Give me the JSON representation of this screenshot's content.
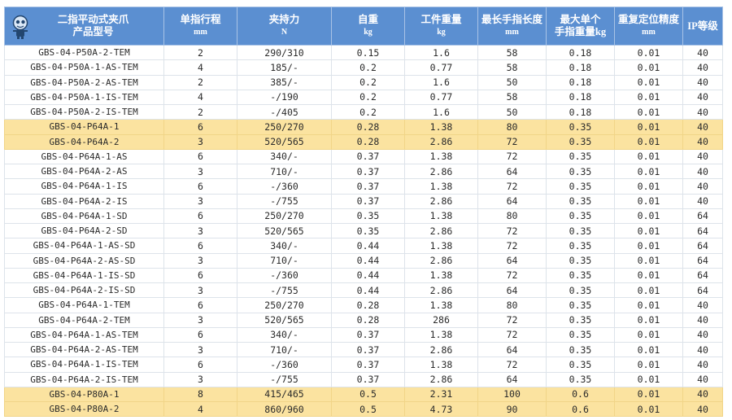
{
  "header": {
    "model": {
      "line1": "二指平动式夹爪",
      "line2": "产品型号"
    },
    "stroke": {
      "title": "单指行程",
      "unit": "mm"
    },
    "force": {
      "title": "夹持力",
      "unit": "N"
    },
    "weight": {
      "title": "自重",
      "unit": "kg"
    },
    "workpiece": {
      "title": "工件重量",
      "unit": "kg"
    },
    "finger_len": {
      "title": "最长手指长度",
      "unit": "mm"
    },
    "finger_wt": {
      "title": "最大单个",
      "unit": "手指重量kg"
    },
    "repeat": {
      "title": "重复定位精度",
      "unit": "mm"
    },
    "ip": {
      "title": "IP等级",
      "unit": ""
    }
  },
  "colors": {
    "header_bg": "#5b8fd1",
    "highlight_bg": "#fbe3a0"
  },
  "rows": [
    {
      "model": "GBS-04-P50A-2-TEM",
      "stroke": "2",
      "force": "290/310",
      "weight": "0.15",
      "workpiece": "1.6",
      "finger_len": "58",
      "finger_wt": "0.18",
      "repeat": "0.01",
      "ip": "40",
      "hl": false
    },
    {
      "model": "GBS-04-P50A-1-AS-TEM",
      "stroke": "4",
      "force": "185/-",
      "weight": "0.2",
      "workpiece": "0.77",
      "finger_len": "58",
      "finger_wt": "0.18",
      "repeat": "0.01",
      "ip": "40",
      "hl": false
    },
    {
      "model": "GBS-04-P50A-2-AS-TEM",
      "stroke": "2",
      "force": "385/-",
      "weight": "0.2",
      "workpiece": "1.6",
      "finger_len": "50",
      "finger_wt": "0.18",
      "repeat": "0.01",
      "ip": "40",
      "hl": false
    },
    {
      "model": "GBS-04-P50A-1-IS-TEM",
      "stroke": "4",
      "force": "-/190",
      "weight": "0.2",
      "workpiece": "0.77",
      "finger_len": "58",
      "finger_wt": "0.18",
      "repeat": "0.01",
      "ip": "40",
      "hl": false
    },
    {
      "model": "GBS-04-P50A-2-IS-TEM",
      "stroke": "2",
      "force": "-/405",
      "weight": "0.2",
      "workpiece": "1.6",
      "finger_len": "50",
      "finger_wt": "0.18",
      "repeat": "0.01",
      "ip": "40",
      "hl": false
    },
    {
      "model": "GBS-04-P64A-1",
      "stroke": "6",
      "force": "250/270",
      "weight": "0.28",
      "workpiece": "1.38",
      "finger_len": "80",
      "finger_wt": "0.35",
      "repeat": "0.01",
      "ip": "40",
      "hl": true
    },
    {
      "model": "GBS-04-P64A-2",
      "stroke": "3",
      "force": "520/565",
      "weight": "0.28",
      "workpiece": "2.86",
      "finger_len": "72",
      "finger_wt": "0.35",
      "repeat": "0.01",
      "ip": "40",
      "hl": true
    },
    {
      "model": "GBS-04-P64A-1-AS",
      "stroke": "6",
      "force": "340/-",
      "weight": "0.37",
      "workpiece": "1.38",
      "finger_len": "72",
      "finger_wt": "0.35",
      "repeat": "0.01",
      "ip": "40",
      "hl": false
    },
    {
      "model": "GBS-04-P64A-2-AS",
      "stroke": "3",
      "force": "710/-",
      "weight": "0.37",
      "workpiece": "2.86",
      "finger_len": "64",
      "finger_wt": "0.35",
      "repeat": "0.01",
      "ip": "40",
      "hl": false
    },
    {
      "model": "GBS-04-P64A-1-IS",
      "stroke": "6",
      "force": "-/360",
      "weight": "0.37",
      "workpiece": "1.38",
      "finger_len": "72",
      "finger_wt": "0.35",
      "repeat": "0.01",
      "ip": "40",
      "hl": false
    },
    {
      "model": "GBS-04-P64A-2-IS",
      "stroke": "3",
      "force": "-/755",
      "weight": "0.37",
      "workpiece": "2.86",
      "finger_len": "64",
      "finger_wt": "0.35",
      "repeat": "0.01",
      "ip": "40",
      "hl": false
    },
    {
      "model": "GBS-04-P64A-1-SD",
      "stroke": "6",
      "force": "250/270",
      "weight": "0.35",
      "workpiece": "1.38",
      "finger_len": "80",
      "finger_wt": "0.35",
      "repeat": "0.01",
      "ip": "64",
      "hl": false
    },
    {
      "model": "GBS-04-P64A-2-SD",
      "stroke": "3",
      "force": "520/565",
      "weight": "0.35",
      "workpiece": "2.86",
      "finger_len": "72",
      "finger_wt": "0.35",
      "repeat": "0.01",
      "ip": "64",
      "hl": false
    },
    {
      "model": "GBS-04-P64A-1-AS-SD",
      "stroke": "6",
      "force": "340/-",
      "weight": "0.44",
      "workpiece": "1.38",
      "finger_len": "72",
      "finger_wt": "0.35",
      "repeat": "0.01",
      "ip": "64",
      "hl": false
    },
    {
      "model": "GBS-04-P64A-2-AS-SD",
      "stroke": "3",
      "force": "710/-",
      "weight": "0.44",
      "workpiece": "2.86",
      "finger_len": "64",
      "finger_wt": "0.35",
      "repeat": "0.01",
      "ip": "64",
      "hl": false
    },
    {
      "model": "GBS-04-P64A-1-IS-SD",
      "stroke": "6",
      "force": "-/360",
      "weight": "0.44",
      "workpiece": "1.38",
      "finger_len": "72",
      "finger_wt": "0.35",
      "repeat": "0.01",
      "ip": "64",
      "hl": false
    },
    {
      "model": "GBS-04-P64A-2-IS-SD",
      "stroke": "3",
      "force": "-/755",
      "weight": "0.44",
      "workpiece": "2.86",
      "finger_len": "64",
      "finger_wt": "0.35",
      "repeat": "0.01",
      "ip": "64",
      "hl": false
    },
    {
      "model": "GBS-04-P64A-1-TEM",
      "stroke": "6",
      "force": "250/270",
      "weight": "0.28",
      "workpiece": "1.38",
      "finger_len": "80",
      "finger_wt": "0.35",
      "repeat": "0.01",
      "ip": "40",
      "hl": false
    },
    {
      "model": "GBS-04-P64A-2-TEM",
      "stroke": "3",
      "force": "520/565",
      "weight": "0.28",
      "workpiece": "286",
      "finger_len": "72",
      "finger_wt": "0.35",
      "repeat": "0.01",
      "ip": "40",
      "hl": false
    },
    {
      "model": "GBS-04-P64A-1-AS-TEM",
      "stroke": "6",
      "force": "340/-",
      "weight": "0.37",
      "workpiece": "1.38",
      "finger_len": "72",
      "finger_wt": "0.35",
      "repeat": "0.01",
      "ip": "40",
      "hl": false
    },
    {
      "model": "GBS-04-P64A-2-AS-TEM",
      "stroke": "3",
      "force": "710/-",
      "weight": "0.37",
      "workpiece": "2.86",
      "finger_len": "64",
      "finger_wt": "0.35",
      "repeat": "0.01",
      "ip": "40",
      "hl": false
    },
    {
      "model": "GBS-04-P64A-1-IS-TEM",
      "stroke": "6",
      "force": "-/360",
      "weight": "0.37",
      "workpiece": "1.38",
      "finger_len": "72",
      "finger_wt": "0.35",
      "repeat": "0.01",
      "ip": "40",
      "hl": false
    },
    {
      "model": "GBS-04-P64A-2-IS-TEM",
      "stroke": "3",
      "force": "-/755",
      "weight": "0.37",
      "workpiece": "2.86",
      "finger_len": "64",
      "finger_wt": "0.35",
      "repeat": "0.01",
      "ip": "40",
      "hl": false
    },
    {
      "model": "GBS-04-P80A-1",
      "stroke": "8",
      "force": "415/465",
      "weight": "0.5",
      "workpiece": "2.31",
      "finger_len": "100",
      "finger_wt": "0.6",
      "repeat": "0.01",
      "ip": "40",
      "hl": true
    },
    {
      "model": "GBS-04-P80A-2",
      "stroke": "4",
      "force": "860/960",
      "weight": "0.5",
      "workpiece": "4.73",
      "finger_len": "90",
      "finger_wt": "0.6",
      "repeat": "0.01",
      "ip": "40",
      "hl": true
    }
  ]
}
